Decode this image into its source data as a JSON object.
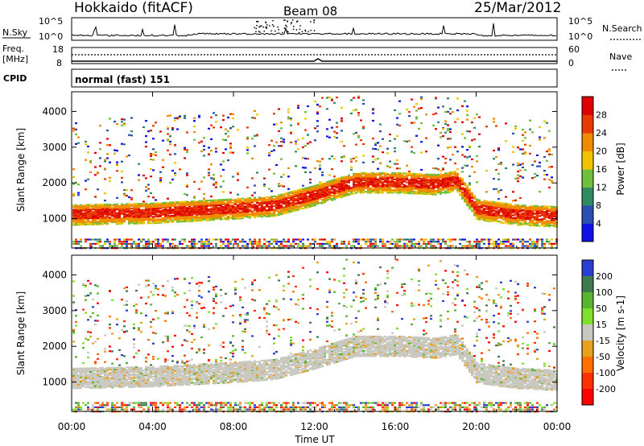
{
  "header": {
    "station": "Hokkaido (fitACF)",
    "beam": "Beam 08",
    "date": "25/Mar/2012"
  },
  "noise_panel": {
    "left_label": "N.Sky",
    "left_ticks": [
      "10^5",
      "10^0"
    ],
    "right_label": "N.Search",
    "right_ticks": [
      "10^5",
      "10^0"
    ]
  },
  "freq_panel": {
    "left_label_line1": "Freq.",
    "left_label_line2": "[MHz]",
    "left_ticks": [
      "18",
      "8"
    ],
    "right_label": "Nave",
    "right_ticks": [
      "60",
      "0"
    ]
  },
  "cpid_panel": {
    "label": "CPID",
    "value": "normal (fast) 151"
  },
  "x_axis": {
    "label": "Time UT",
    "ticks": [
      "00:00",
      "04:00",
      "08:00",
      "12:00",
      "16:00",
      "20:00",
      "00:00"
    ]
  },
  "chart_data": [
    {
      "type": "heatmap",
      "panel": "power",
      "ylabel": "Slant Range [km]",
      "y_ticks": [
        1000,
        2000,
        3000,
        4000
      ],
      "ylim": [
        180,
        4550
      ],
      "xlim_hours": [
        0,
        24
      ],
      "colorbar": {
        "label": "Power [dB]",
        "ticks": [
          4,
          8,
          12,
          16,
          20,
          24,
          28
        ],
        "colors": [
          "#1010e8",
          "#2a4fb0",
          "#2f8a60",
          "#6fbf3a",
          "#f2c400",
          "#f08a00",
          "#e83a00",
          "#e00000"
        ]
      },
      "bands": [
        {
          "name": "main echo",
          "x": [
            0,
            4,
            8,
            10,
            12,
            14,
            16,
            18,
            19,
            20,
            22,
            24
          ],
          "y": [
            1150,
            1200,
            1320,
            1400,
            1700,
            2050,
            2050,
            2000,
            2100,
            1300,
            1150,
            1100
          ]
        }
      ]
    },
    {
      "type": "heatmap",
      "panel": "velocity",
      "ylabel": "Slant Range [km]",
      "y_ticks": [
        1000,
        2000,
        3000,
        4000
      ],
      "ylim": [
        180,
        4550
      ],
      "xlim_hours": [
        0,
        24
      ],
      "colorbar": {
        "label": "Velocity [m s-1]",
        "ticks": [
          200,
          100,
          50,
          15,
          -15,
          -50,
          -100,
          -200
        ],
        "colors": [
          "#2a3fd0",
          "#3f7a4f",
          "#59b530",
          "#7ee02a",
          "#c8c8c0",
          "#e8a020",
          "#ff7000",
          "#ff3000",
          "#ff0000"
        ]
      }
    }
  ],
  "colors": {
    "frame": "#000000",
    "ground_scatter": "#c8c8c0"
  }
}
